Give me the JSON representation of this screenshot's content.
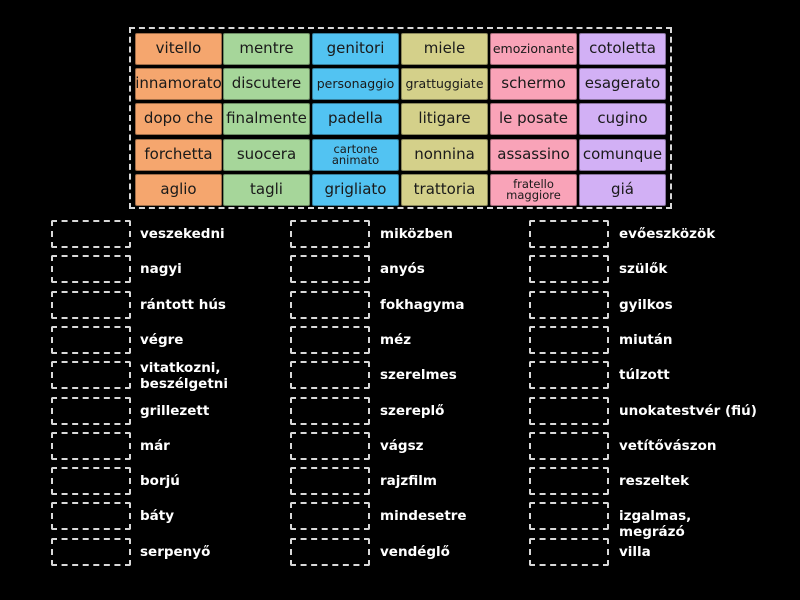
{
  "tiles": [
    [
      "vitello",
      "mentre",
      "genitori",
      "miele",
      "emozionante",
      "cotoletta"
    ],
    [
      "innamorato",
      "discutere",
      "personaggio",
      "grattuggiate",
      "schermo",
      "esagerato"
    ],
    [
      "dopo che",
      "finalmente",
      "padella",
      "litigare",
      "le posate",
      "cugino"
    ],
    [
      "forchetta",
      "suocera",
      "cartone animato",
      "nonnina",
      "assassino",
      "comunque"
    ],
    [
      "aglio",
      "tagli",
      "grigliato",
      "trattoria",
      "fratello maggiore",
      "giá"
    ]
  ],
  "tile_colors": [
    "#f5a66e",
    "#a6d69a",
    "#52c3f2",
    "#d4d08a",
    "#f9a3b8",
    "#d2b0f5"
  ],
  "answers": [
    [
      "veszekedni",
      "nagyi",
      "rántott hús",
      "végre",
      "vitatkozni, beszélgetni",
      "grillezett",
      "már",
      "borjú",
      "báty",
      "serpenyő"
    ],
    [
      "miközben",
      "anyós",
      "fokhagyma",
      "méz",
      "szerelmes",
      "szereplő",
      "vágsz",
      "rajzfilm",
      "mindesetre",
      "vendéglő"
    ],
    [
      "evőeszközök",
      "szülők",
      "gyilkos",
      "miután",
      "túlzott",
      "unokatestvér (fiú)",
      "vetítővászon",
      "reszeltek",
      "izgalmas, megrázó",
      "villa"
    ]
  ]
}
